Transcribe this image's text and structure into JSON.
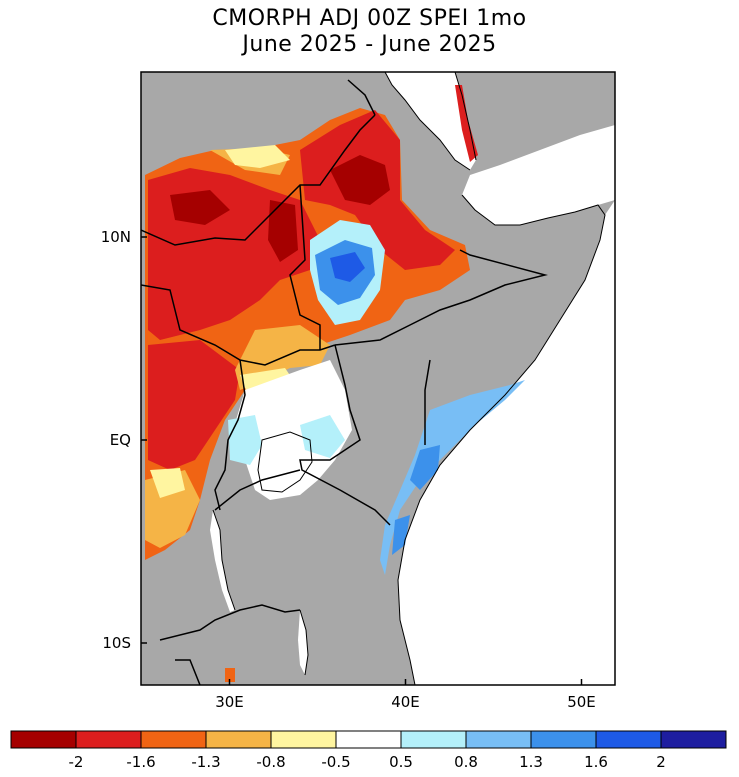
{
  "title_line1": "CMORPH ADJ 00Z SPEI 1mo",
  "title_line2": "June 2025 - June 2025",
  "lat_labels": [
    {
      "text": "10N",
      "lat": 10
    },
    {
      "text": "EQ",
      "lat": 0
    },
    {
      "text": "10S",
      "lat": -10
    }
  ],
  "lon_labels": [
    {
      "text": "30E",
      "lon": 30
    },
    {
      "text": "40E",
      "lon": 40
    },
    {
      "text": "50E",
      "lon": 50
    }
  ],
  "colorbar": {
    "colors": [
      "#a50000",
      "#dc1e1e",
      "#f06414",
      "#f5b446",
      "#fff5a0",
      "#ffffff",
      "#b4f0fa",
      "#78bef5",
      "#3c91eb",
      "#1e5ae6",
      "#1e1ea0"
    ],
    "tick_labels": [
      "-2",
      "-1.6",
      "-1.3",
      "-0.8",
      "-0.5",
      "0.5",
      "0.8",
      "1.3",
      "1.6",
      "2"
    ]
  },
  "colors": {
    "land_nodata": "#a8a8a8",
    "sea": "#ffffff",
    "frame": "#000000"
  }
}
